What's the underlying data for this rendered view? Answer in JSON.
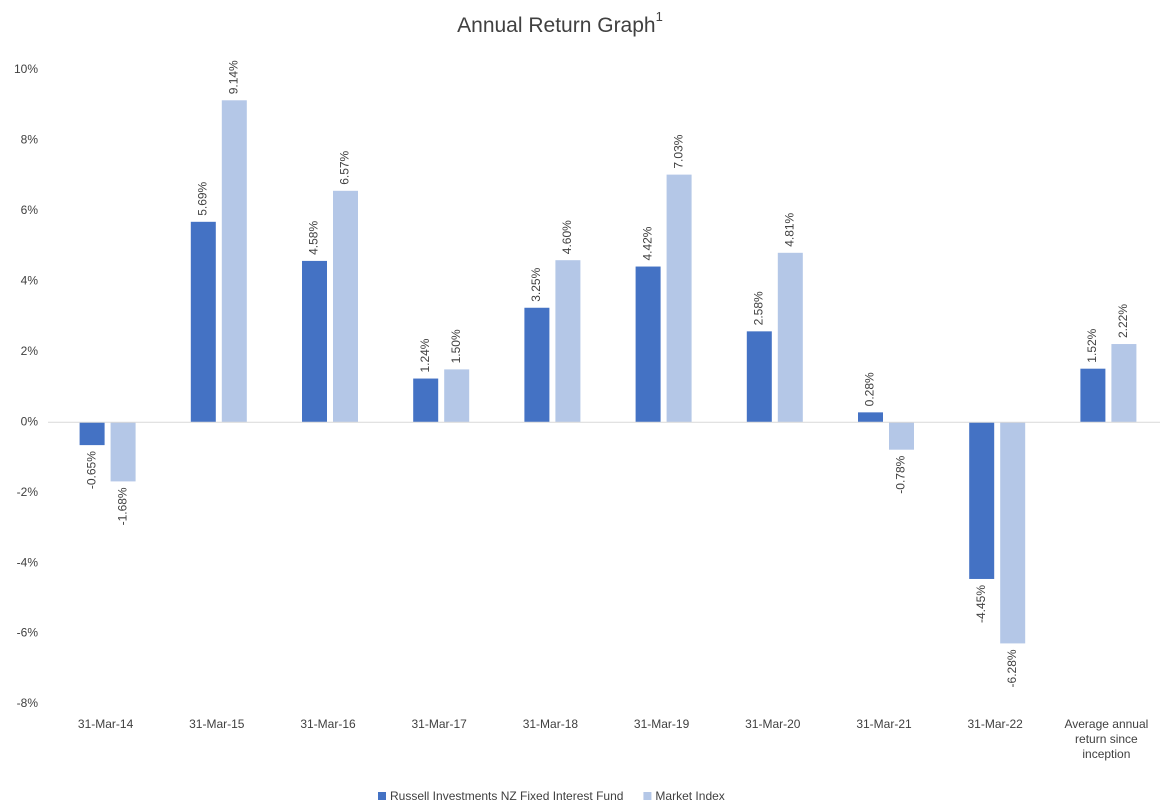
{
  "chart_data": {
    "type": "bar",
    "title": "Annual Return Graph",
    "title_superscript": "1",
    "categories": [
      "31-Mar-14",
      "31-Mar-15",
      "31-Mar-16",
      "31-Mar-17",
      "31-Mar-18",
      "31-Mar-19",
      "31-Mar-20",
      "31-Mar-21",
      "31-Mar-22",
      "Average annual return since inception"
    ],
    "series": [
      {
        "name": "Russell Investments NZ Fixed Interest Fund",
        "color": "#4472c4",
        "values": [
          -0.65,
          5.69,
          4.58,
          1.24,
          3.25,
          4.42,
          2.58,
          0.28,
          -4.45,
          1.52
        ],
        "value_labels": [
          "-0.65%",
          "5.69%",
          "4.58%",
          "1.24%",
          "3.25%",
          "4.42%",
          "2.58%",
          "0.28%",
          "-4.45%",
          "1.52%"
        ]
      },
      {
        "name": "Market Index",
        "color": "#b4c7e7",
        "values": [
          -1.68,
          9.14,
          6.57,
          1.5,
          4.6,
          7.03,
          4.81,
          -0.78,
          -6.28,
          2.22
        ],
        "value_labels": [
          "-1.68%",
          "9.14%",
          "6.57%",
          "1.50%",
          "4.60%",
          "7.03%",
          "4.81%",
          "-0.78%",
          "-6.28%",
          "2.22%"
        ]
      }
    ],
    "ylim": [
      -8,
      10
    ],
    "yticks": [
      {
        "value": -8,
        "label": "-8%"
      },
      {
        "value": -6,
        "label": "-6%"
      },
      {
        "value": -4,
        "label": "-4%"
      },
      {
        "value": -2,
        "label": "-2%"
      },
      {
        "value": 0,
        "label": "0%"
      },
      {
        "value": 2,
        "label": "2%"
      },
      {
        "value": 4,
        "label": "4%"
      },
      {
        "value": 6,
        "label": "6%"
      },
      {
        "value": 8,
        "label": "8%"
      },
      {
        "value": 10,
        "label": "10%"
      }
    ],
    "grid": false,
    "legend": "bottom"
  }
}
